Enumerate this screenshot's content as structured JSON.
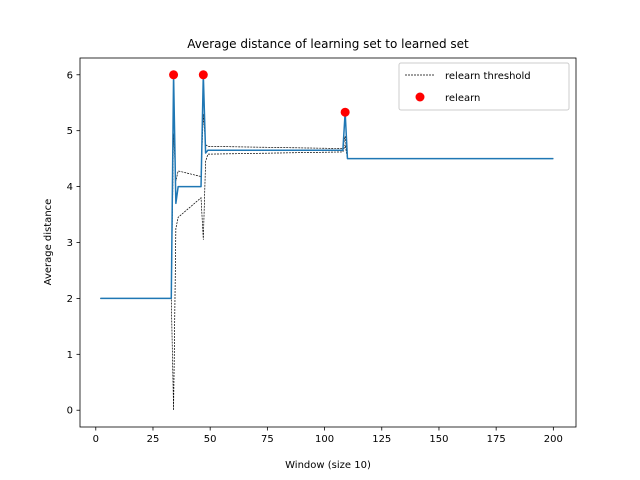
{
  "chart_data": {
    "type": "line",
    "title": "Average distance of learning set to learned set",
    "xlabel": "Window (size 10)",
    "ylabel": "Average distance",
    "xlim": [
      -6.9,
      209.9
    ],
    "ylim": [
      -0.3,
      6.3
    ],
    "xticks": [
      0,
      25,
      50,
      75,
      100,
      125,
      150,
      175,
      200
    ],
    "yticks": [
      0,
      1,
      2,
      3,
      4,
      5,
      6
    ],
    "grid": false,
    "legend_position": "top-right",
    "legend": [
      {
        "label": "relearn threshold",
        "kind": "dashed-line"
      },
      {
        "label": "relearn",
        "kind": "marker"
      }
    ],
    "colors": {
      "main_line": "#1f77b4",
      "threshold": "#000000",
      "marker": "#ff0000"
    },
    "series": [
      {
        "role": "average",
        "points": [
          [
            2,
            2
          ],
          [
            33,
            2
          ],
          [
            34,
            6
          ],
          [
            35,
            3.7
          ],
          [
            36,
            4
          ],
          [
            46,
            4
          ],
          [
            47,
            6
          ],
          [
            48,
            4.6
          ],
          [
            49,
            4.65
          ],
          [
            108,
            4.65
          ],
          [
            109,
            5.33
          ],
          [
            110,
            4.5
          ],
          [
            200,
            4.5
          ]
        ]
      },
      {
        "role": "upper-threshold",
        "points": [
          [
            2,
            2
          ],
          [
            33,
            2
          ],
          [
            34,
            4.95
          ],
          [
            35,
            4.1
          ],
          [
            36,
            4.28
          ],
          [
            46,
            4.18
          ],
          [
            47,
            5.3
          ],
          [
            48,
            4.75
          ],
          [
            49,
            4.72
          ],
          [
            108,
            4.68
          ],
          [
            109,
            4.9
          ],
          [
            110,
            4.5
          ],
          [
            200,
            4.5
          ]
        ]
      },
      {
        "role": "lower-threshold",
        "points": [
          [
            2,
            2
          ],
          [
            33,
            2
          ],
          [
            34,
            0
          ],
          [
            35,
            3.25
          ],
          [
            36,
            3.45
          ],
          [
            46,
            3.8
          ],
          [
            47,
            3.05
          ],
          [
            48,
            4.45
          ],
          [
            49,
            4.58
          ],
          [
            108,
            4.62
          ],
          [
            109,
            4.75
          ],
          [
            110,
            4.5
          ],
          [
            200,
            4.5
          ]
        ]
      },
      {
        "role": "relearn",
        "points": [
          [
            34,
            6
          ],
          [
            47,
            6
          ],
          [
            109,
            5.33
          ]
        ]
      }
    ]
  }
}
